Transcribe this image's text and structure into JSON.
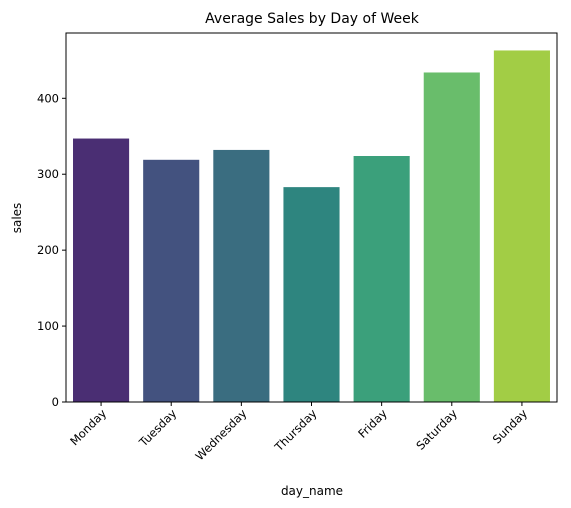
{
  "chart_data": {
    "type": "bar",
    "title": "Average Sales by Day of Week",
    "xlabel": "day_name",
    "ylabel": "sales",
    "categories": [
      "Monday",
      "Tuesday",
      "Wednesday",
      "Thursday",
      "Friday",
      "Saturday",
      "Sunday"
    ],
    "values": [
      347,
      319,
      332,
      283,
      324,
      434,
      463
    ],
    "colors": [
      "#4a2e73",
      "#43527f",
      "#3a6d80",
      "#2e857f",
      "#3ba07b",
      "#69bd6b",
      "#a2cd45"
    ],
    "ylim": [
      0,
      486
    ],
    "yticks": [
      0,
      100,
      200,
      300,
      400
    ],
    "grid": false,
    "legend": "none"
  }
}
